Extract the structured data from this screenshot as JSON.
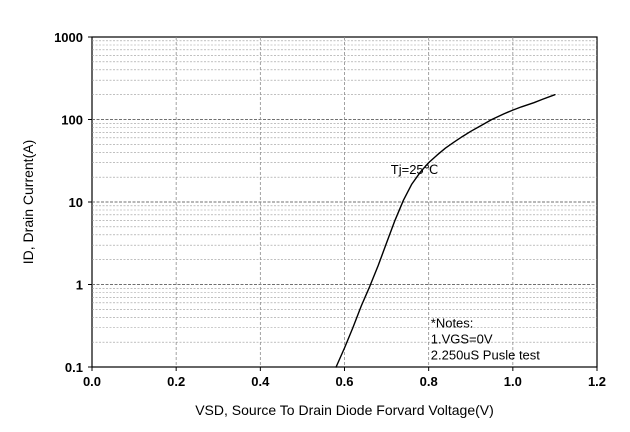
{
  "chart_data": {
    "type": "line",
    "title": "",
    "xlabel": "VSD, Source To Drain Diode Forvard Voltage(V)",
    "ylabel": "ID, Drain Current(A)",
    "xlim": [
      0.0,
      1.2
    ],
    "ylim": [
      0.1,
      1000
    ],
    "yscale": "log",
    "grid": true,
    "x_ticks": [
      "0.0",
      "0.2",
      "0.4",
      "0.6",
      "0.8",
      "1.0",
      "1.2"
    ],
    "y_ticks": [
      "0.1",
      "1",
      "10",
      "100",
      "1000"
    ],
    "series": [
      {
        "name": "",
        "x": [
          0.58,
          0.6,
          0.62,
          0.64,
          0.66,
          0.68,
          0.7,
          0.72,
          0.74,
          0.76,
          0.78,
          0.8,
          0.82,
          0.84,
          0.86,
          0.88,
          0.9,
          0.92,
          0.95,
          0.98,
          1.0,
          1.02,
          1.05,
          1.07,
          1.1
        ],
        "y": [
          0.1,
          0.17,
          0.3,
          0.55,
          0.95,
          1.7,
          3.2,
          6.0,
          10.5,
          16.5,
          23.0,
          30.0,
          37.0,
          45.0,
          53.0,
          62.0,
          72.0,
          82.0,
          100.0,
          118.0,
          130.0,
          142.0,
          160.0,
          175.0,
          200.0
        ]
      }
    ],
    "annotations": [
      {
        "text": "Tj=25℃",
        "x": 0.71,
        "y": 22
      },
      {
        "lines": [
          "*Notes:",
          "1.VGS=0V",
          "2.250uS Pusle test"
        ],
        "x": 0.805,
        "y": 0.3
      }
    ]
  }
}
